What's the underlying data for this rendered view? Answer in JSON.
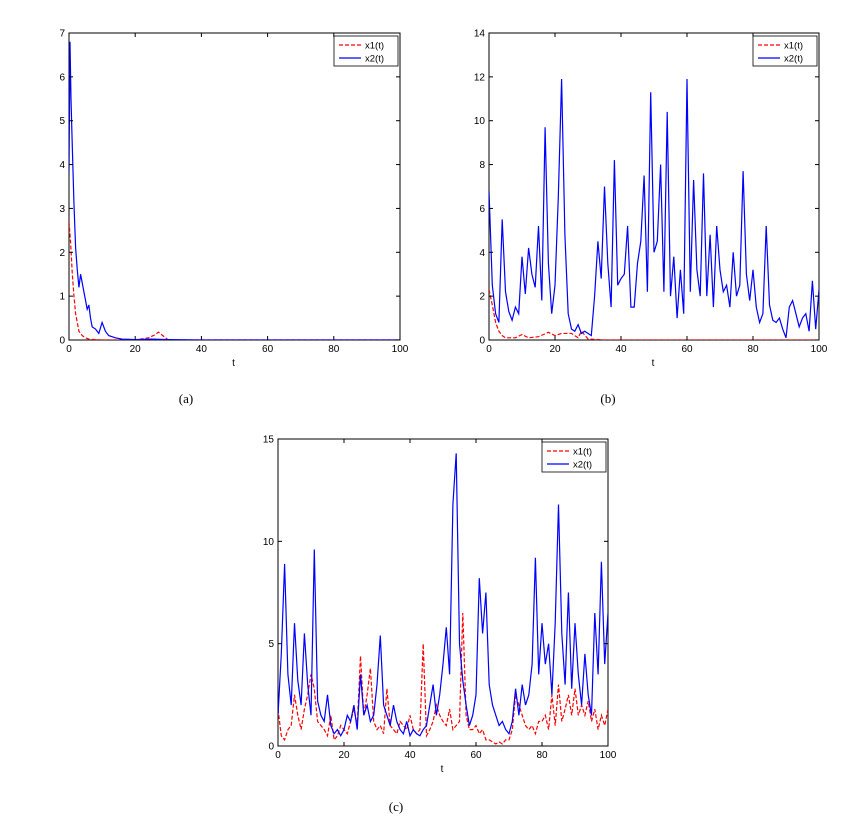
{
  "colors": {
    "x1": "#ff0000",
    "x2": "#0000ff"
  },
  "chart_data": [
    {
      "type": "line",
      "panel_label": "(a)",
      "xlabel": "t",
      "xlim": [
        0,
        100
      ],
      "ylim": [
        0,
        7
      ],
      "xticks": [
        0,
        20,
        40,
        60,
        80,
        100
      ],
      "yticks": [
        0,
        1,
        2,
        3,
        4,
        5,
        6,
        7
      ],
      "legend_position": "top-right",
      "series": [
        {
          "name": "x1(t)",
          "style": "dashed",
          "color": "#ff0000",
          "x": [
            0,
            0.5,
            1,
            1.5,
            2,
            2.5,
            3,
            4,
            5,
            6,
            8,
            10,
            14,
            20,
            24,
            26,
            27,
            28,
            29,
            30,
            35,
            40,
            60,
            80,
            100
          ],
          "y": [
            2.7,
            2.2,
            1.5,
            1.0,
            0.6,
            0.4,
            0.2,
            0.1,
            0.05,
            0.02,
            0.01,
            0.0,
            0.0,
            0.0,
            0.05,
            0.12,
            0.18,
            0.12,
            0.06,
            0.0,
            0.0,
            0.0,
            0.0,
            0.0,
            0.0
          ]
        },
        {
          "name": "x2(t)",
          "style": "solid",
          "color": "#0000ff",
          "x": [
            0,
            0.3,
            0.6,
            1,
            1.5,
            2,
            2.5,
            3,
            3.5,
            4,
            4.5,
            5,
            5.5,
            6,
            6.5,
            7,
            8,
            9,
            10,
            11,
            12,
            14,
            16,
            20,
            25,
            30,
            40,
            60,
            80,
            100
          ],
          "y": [
            3.8,
            6.8,
            5.5,
            4.4,
            3.1,
            2.1,
            1.6,
            1.2,
            1.5,
            1.3,
            1.1,
            0.9,
            0.7,
            0.8,
            0.5,
            0.3,
            0.25,
            0.15,
            0.4,
            0.2,
            0.1,
            0.05,
            0.02,
            0.01,
            0.02,
            0.01,
            0.0,
            0.0,
            0.0,
            0.0
          ]
        }
      ]
    },
    {
      "type": "line",
      "panel_label": "(b)",
      "xlabel": "t",
      "xlim": [
        0,
        100
      ],
      "ylim": [
        0,
        14
      ],
      "xticks": [
        0,
        20,
        40,
        60,
        80,
        100
      ],
      "yticks": [
        0,
        2,
        4,
        6,
        8,
        10,
        12,
        14
      ],
      "legend_position": "top-right",
      "series": [
        {
          "name": "x1(t)",
          "style": "dashed",
          "color": "#ff0000",
          "x": [
            0,
            1,
            2,
            3,
            4,
            5,
            8,
            10,
            12,
            15,
            18,
            20,
            22,
            25,
            27,
            28,
            30,
            35,
            100
          ],
          "y": [
            2.3,
            1.6,
            0.8,
            0.4,
            0.2,
            0.1,
            0.1,
            0.25,
            0.1,
            0.15,
            0.35,
            0.2,
            0.3,
            0.3,
            0.1,
            0.4,
            0.05,
            0.0,
            0.0
          ]
        },
        {
          "name": "x2(t)",
          "style": "solid",
          "color": "#0000ff",
          "x": [
            0,
            1,
            2,
            3,
            4,
            5,
            6,
            7,
            8,
            9,
            10,
            11,
            12,
            13,
            14,
            15,
            16,
            17,
            18,
            19,
            20,
            21,
            22,
            23,
            24,
            25,
            26,
            27,
            28,
            29,
            30,
            31,
            32,
            33,
            34,
            35,
            36,
            37,
            38,
            39,
            40,
            41,
            42,
            43,
            44,
            45,
            46,
            47,
            48,
            49,
            50,
            51,
            52,
            53,
            54,
            55,
            56,
            57,
            58,
            59,
            60,
            61,
            62,
            63,
            64,
            65,
            66,
            67,
            68,
            69,
            70,
            71,
            72,
            73,
            74,
            75,
            76,
            77,
            78,
            79,
            80,
            81,
            82,
            83,
            84,
            85,
            86,
            87,
            88,
            89,
            90,
            91,
            92,
            93,
            94,
            95,
            96,
            97,
            98,
            99,
            100
          ],
          "y": [
            6.8,
            2.5,
            1.2,
            0.8,
            5.5,
            2.2,
            1.3,
            0.9,
            1.5,
            1.2,
            3.8,
            2.1,
            4.2,
            3.0,
            2.4,
            5.2,
            1.8,
            9.7,
            3.5,
            1.2,
            2.5,
            6.5,
            11.9,
            4.8,
            1.2,
            0.5,
            0.4,
            0.7,
            0.3,
            0.4,
            0.3,
            0.2,
            2.0,
            4.5,
            2.8,
            7.0,
            3.5,
            1.5,
            8.2,
            2.5,
            2.8,
            3.0,
            5.2,
            1.5,
            1.5,
            3.5,
            4.5,
            7.5,
            2.2,
            11.3,
            4.0,
            4.5,
            8.0,
            2.2,
            10.4,
            2.0,
            3.8,
            1.0,
            3.2,
            1.2,
            11.9,
            2.2,
            7.3,
            3.2,
            2.0,
            7.6,
            2.0,
            4.8,
            1.5,
            5.2,
            3.2,
            2.2,
            2.5,
            1.5,
            4.0,
            2.0,
            2.5,
            7.7,
            3.0,
            1.8,
            3.2,
            1.5,
            0.8,
            1.2,
            5.2,
            1.6,
            0.9,
            0.8,
            1.0,
            0.5,
            0.1,
            1.5,
            1.8,
            1.2,
            0.6,
            1.0,
            1.2,
            0.4,
            2.7,
            0.5,
            2.3
          ]
        }
      ]
    },
    {
      "type": "line",
      "panel_label": "(c)",
      "xlabel": "t",
      "xlim": [
        0,
        100
      ],
      "ylim": [
        0,
        15
      ],
      "xticks": [
        0,
        20,
        40,
        60,
        80,
        100
      ],
      "yticks": [
        0,
        5,
        10,
        15
      ],
      "legend_position": "top-right",
      "series": [
        {
          "name": "x1(t)",
          "style": "dashed",
          "color": "#ff0000",
          "x": [
            0,
            1,
            2,
            3,
            4,
            5,
            6,
            7,
            8,
            9,
            10,
            11,
            12,
            13,
            14,
            15,
            16,
            17,
            18,
            19,
            20,
            21,
            22,
            23,
            24,
            25,
            26,
            27,
            28,
            29,
            30,
            31,
            32,
            33,
            34,
            35,
            36,
            37,
            38,
            39,
            40,
            41,
            42,
            43,
            44,
            45,
            46,
            47,
            48,
            49,
            50,
            51,
            52,
            53,
            54,
            55,
            56,
            57,
            58,
            59,
            60,
            61,
            62,
            63,
            64,
            65,
            66,
            67,
            68,
            69,
            70,
            71,
            72,
            73,
            74,
            75,
            76,
            77,
            78,
            79,
            80,
            81,
            82,
            83,
            84,
            85,
            86,
            87,
            88,
            89,
            90,
            91,
            92,
            93,
            94,
            95,
            96,
            97,
            98,
            99,
            100
          ],
          "y": [
            1.8,
            0.5,
            0.3,
            0.8,
            1.0,
            2.5,
            1.5,
            0.8,
            1.8,
            2.5,
            3.5,
            2.8,
            1.2,
            1.0,
            0.8,
            0.5,
            1.5,
            0.3,
            0.5,
            1.0,
            0.8,
            0.6,
            1.2,
            1.8,
            1.0,
            4.4,
            1.5,
            2.5,
            3.8,
            1.2,
            0.8,
            1.0,
            0.6,
            2.8,
            1.0,
            0.8,
            0.6,
            1.2,
            1.0,
            0.8,
            1.5,
            0.8,
            0.6,
            0.8,
            5.0,
            0.5,
            0.8,
            1.2,
            2.0,
            1.5,
            1.2,
            1.0,
            1.8,
            0.8,
            1.0,
            1.2,
            6.5,
            1.5,
            0.8,
            0.8,
            1.0,
            0.6,
            0.8,
            0.3,
            0.3,
            0.2,
            0.1,
            0.2,
            0.1,
            0.3,
            0.3,
            0.8,
            2.5,
            2.0,
            1.5,
            1.0,
            0.8,
            1.0,
            0.6,
            1.2,
            1.2,
            1.5,
            0.8,
            2.5,
            1.0,
            3.0,
            1.2,
            1.8,
            2.5,
            1.5,
            2.8,
            1.5,
            2.0,
            1.5,
            2.2,
            1.2,
            1.8,
            0.8,
            1.5,
            1.0,
            1.8
          ]
        },
        {
          "name": "x2(t)",
          "style": "solid",
          "color": "#0000ff",
          "x": [
            0,
            1,
            2,
            3,
            4,
            5,
            6,
            7,
            8,
            9,
            10,
            11,
            12,
            13,
            14,
            15,
            16,
            17,
            18,
            19,
            20,
            21,
            22,
            23,
            24,
            25,
            26,
            27,
            28,
            29,
            30,
            31,
            32,
            33,
            34,
            35,
            36,
            37,
            38,
            39,
            40,
            41,
            42,
            43,
            44,
            45,
            46,
            47,
            48,
            49,
            50,
            51,
            52,
            53,
            54,
            55,
            56,
            57,
            58,
            59,
            60,
            61,
            62,
            63,
            64,
            65,
            66,
            67,
            68,
            69,
            70,
            71,
            72,
            73,
            74,
            75,
            76,
            77,
            78,
            79,
            80,
            81,
            82,
            83,
            84,
            85,
            86,
            87,
            88,
            89,
            90,
            91,
            92,
            93,
            94,
            95,
            96,
            97,
            98,
            99,
            100
          ],
          "y": [
            1.5,
            4.5,
            8.9,
            3.5,
            2.0,
            6.0,
            3.2,
            2.0,
            5.5,
            3.0,
            1.5,
            9.6,
            2.2,
            1.5,
            1.2,
            2.5,
            1.0,
            0.6,
            0.8,
            0.5,
            0.8,
            1.5,
            1.2,
            2.0,
            0.8,
            3.5,
            1.5,
            2.0,
            1.2,
            1.5,
            3.0,
            5.4,
            2.0,
            1.5,
            1.0,
            2.0,
            1.2,
            0.8,
            0.6,
            1.2,
            0.5,
            0.8,
            0.6,
            0.5,
            0.8,
            1.0,
            2.0,
            3.0,
            1.5,
            2.5,
            4.0,
            5.8,
            3.5,
            11.8,
            14.3,
            5.0,
            3.2,
            2.0,
            1.0,
            1.5,
            2.5,
            8.2,
            5.5,
            7.5,
            3.0,
            2.0,
            1.5,
            1.0,
            1.2,
            0.8,
            0.6,
            1.2,
            2.8,
            1.5,
            3.0,
            2.0,
            2.5,
            4.0,
            9.2,
            3.5,
            6.0,
            4.0,
            5.0,
            2.5,
            6.0,
            11.8,
            5.5,
            3.0,
            7.5,
            2.8,
            6.0,
            3.5,
            2.0,
            4.5,
            2.5,
            1.5,
            6.5,
            3.5,
            9.0,
            4.0,
            6.5
          ]
        }
      ]
    }
  ]
}
